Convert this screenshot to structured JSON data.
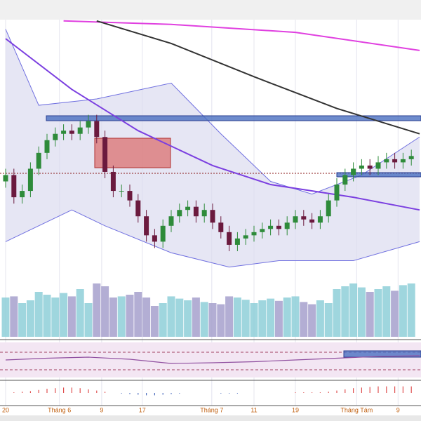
{
  "chart_data": {
    "type": "candlestick",
    "ylim": [
      0,
      100
    ],
    "open": [
      49,
      51,
      44,
      46,
      53,
      58,
      62,
      64,
      65,
      64,
      66,
      68,
      63,
      52,
      46,
      46,
      43,
      38,
      32,
      30,
      35,
      38,
      40,
      41,
      38,
      40,
      36,
      33,
      29,
      31,
      32,
      33,
      34,
      35,
      34,
      36,
      38,
      37,
      36,
      38,
      43,
      48,
      51,
      53,
      54,
      53,
      55,
      56,
      55,
      56
    ],
    "high": [
      53,
      53,
      48,
      55,
      60,
      64,
      66,
      67,
      67,
      68,
      70,
      70,
      65,
      54,
      48,
      48,
      45,
      40,
      34,
      37,
      40,
      42,
      43,
      43,
      42,
      42,
      38,
      35,
      33,
      34,
      35,
      36,
      37,
      37,
      38,
      40,
      40,
      39,
      40,
      45,
      50,
      53,
      55,
      56,
      56,
      57,
      58,
      58,
      58,
      59
    ],
    "low": [
      47,
      42,
      42,
      44,
      51,
      56,
      60,
      62,
      62,
      62,
      64,
      61,
      50,
      44,
      44,
      41,
      36,
      30,
      28,
      28,
      33,
      36,
      38,
      36,
      36,
      34,
      31,
      27,
      27,
      29,
      30,
      31,
      32,
      32,
      32,
      34,
      35,
      34,
      34,
      36,
      41,
      46,
      49,
      51,
      51,
      51,
      53,
      53,
      53,
      54
    ],
    "close": [
      51,
      44,
      46,
      53,
      58,
      62,
      64,
      65,
      64,
      66,
      68,
      63,
      52,
      46,
      46,
      43,
      38,
      32,
      30,
      35,
      38,
      40,
      41,
      38,
      40,
      36,
      33,
      29,
      31,
      32,
      33,
      34,
      35,
      34,
      36,
      38,
      37,
      36,
      38,
      43,
      48,
      51,
      53,
      54,
      53,
      55,
      56,
      55,
      56,
      57
    ],
    "lines": [
      {
        "color": "#e040e0",
        "x": [
          7,
          20,
          35,
          50
        ],
        "values": [
          99.6,
          98.5,
          96,
          90.3
        ]
      },
      {
        "color": "#333333",
        "x": [
          11,
          20,
          30,
          40,
          50
        ],
        "values": [
          99.6,
          92.5,
          82,
          72,
          64
        ]
      },
      {
        "color": "#7b3fe0",
        "x": [
          0,
          8,
          16,
          25,
          32,
          42,
          50
        ],
        "values": [
          94,
          78,
          65,
          54,
          48,
          44,
          40
        ]
      }
    ],
    "band_upper": {
      "x": [
        0,
        4,
        11,
        20,
        26,
        32,
        37,
        43,
        50
      ],
      "values": [
        97,
        73,
        75,
        80,
        64,
        49,
        45,
        51,
        63
      ]
    },
    "band_lower": {
      "x": [
        0,
        8,
        12,
        20,
        27,
        33,
        42,
        50
      ],
      "values": [
        30,
        40,
        35,
        26.5,
        22,
        24,
        24,
        30
      ]
    },
    "volume_lim": [
      0,
      100
    ],
    "volume": [
      70,
      72,
      60,
      65,
      80,
      75,
      70,
      78,
      72,
      85,
      60,
      95,
      90,
      70,
      72,
      75,
      80,
      70,
      55,
      60,
      72,
      68,
      65,
      70,
      62,
      60,
      58,
      72,
      70,
      66,
      60,
      65,
      68,
      64,
      70,
      72,
      62,
      58,
      65,
      60,
      85,
      90,
      95,
      88,
      80,
      85,
      90,
      82,
      92,
      95
    ],
    "rsi_lim": [
      0,
      100
    ],
    "rsi": {
      "x": [
        0,
        5,
        10,
        15,
        20,
        25,
        30,
        35,
        40,
        45,
        50
      ],
      "values": [
        50,
        55,
        58,
        52,
        40,
        42,
        45,
        50,
        55,
        60,
        62
      ]
    },
    "macd_lim": [
      -20,
      20
    ],
    "macd": [
      0,
      1,
      2,
      3,
      5,
      7,
      8,
      9,
      9,
      8,
      6,
      4,
      2,
      0,
      -1,
      -2,
      -3,
      -4,
      -4,
      -3,
      -2,
      -1,
      0,
      0,
      0,
      0,
      -1,
      -1,
      -1,
      0,
      0,
      0,
      0,
      0,
      0,
      1,
      1,
      1,
      1,
      2,
      4,
      6,
      8,
      9,
      10,
      11,
      11,
      11,
      11,
      11
    ],
    "xlabels": [
      {
        "index": 0,
        "label": "20"
      },
      {
        "index": 6.5,
        "label": "Tháng 6"
      },
      {
        "index": 11.6,
        "label": "9"
      },
      {
        "index": 16.5,
        "label": "17"
      },
      {
        "index": 24.9,
        "label": "Tháng 7"
      },
      {
        "index": 30,
        "label": "11"
      },
      {
        "index": 35,
        "label": "19"
      },
      {
        "index": 42.4,
        "label": "Tháng Tám"
      },
      {
        "index": 47.4,
        "label": "9"
      }
    ]
  }
}
